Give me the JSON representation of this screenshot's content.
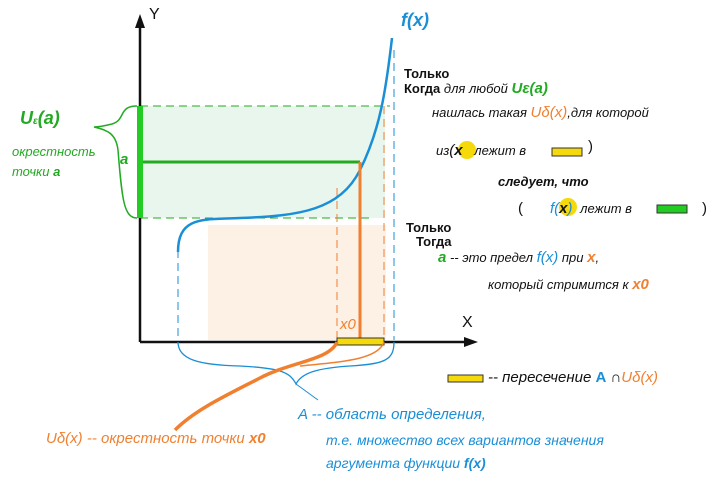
{
  "axes": {
    "y_label": "Y",
    "x_label": "X"
  },
  "function_label": "f(x)",
  "a_label": "a",
  "x0_label": "x0",
  "u_eps_block": {
    "symbol": "U",
    "sub": "ε",
    "arg": "(a)",
    "desc_line1": "окрестность",
    "desc_line2": "точки",
    "desc_point": "a"
  },
  "condition": {
    "only_when_1": "Только",
    "when": "Когда",
    "for_any": "для любой",
    "u_eps": "Uε(a)",
    "found_such": "нашлась такая",
    "u_delta": "Uδ(x)",
    "for_which": ",для которой",
    "from": "из",
    "x_mark": "x",
    "lies_in_1": "лежит в",
    "follows": "следует, что",
    "open_paren": "(",
    "f_of": "f(",
    "close_f": ")",
    "lies_in_2": "лежит в",
    "close_paren": ")",
    "close_paren_1": ")"
  },
  "conclusion": {
    "only_2": "Только",
    "then": "Тогда",
    "a": "a",
    "is_limit": "-- это предел",
    "fx": "f(x)",
    "at": "при",
    "x": "x",
    "comma": ",",
    "which_tends": "который стримится к",
    "x0": "x0"
  },
  "legend": {
    "intersection": "-- пересечение",
    "A": "A",
    "cap": "∩",
    "u_delta": "Uδ(x)"
  },
  "domain_text": {
    "line1": "A -- область определения,",
    "line2": "т.е. множество всех вариантов значения",
    "line3": "аргумента функции",
    "fx": "f(x)"
  },
  "u_delta_block": {
    "symbol": "Uδ(x)",
    "desc": "-- окрестность точки",
    "x0": "x0"
  },
  "colors": {
    "green": "#22aa22",
    "orange": "#f08030",
    "blue": "#1a8fd6",
    "yellow": "#f5d90a",
    "black": "#111111"
  }
}
